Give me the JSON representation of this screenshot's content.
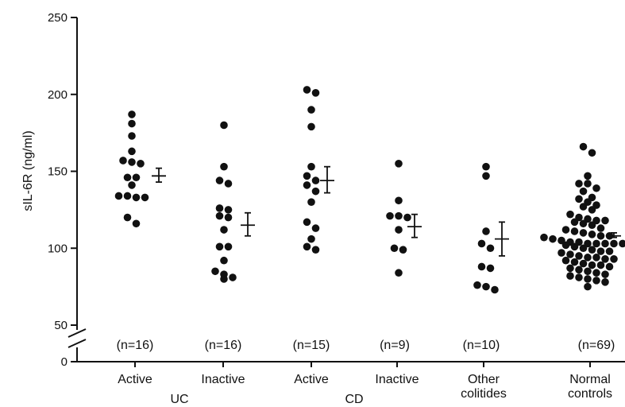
{
  "chart_data": {
    "type": "scatter",
    "ylabel": "sIL-6R (ng/ml)",
    "ylim": [
      50,
      250
    ],
    "y_ticks": [
      "250",
      "200",
      "150",
      "100",
      "50",
      "0"
    ],
    "axis_break": true,
    "groups": [
      {
        "label": "Active",
        "n_label": "(n=16)",
        "values": [
          187,
          181,
          173,
          163,
          157,
          156,
          155,
          146,
          146,
          141,
          134,
          134,
          133,
          133,
          120,
          116
        ],
        "mean": 147,
        "sem_low": 143,
        "sem_high": 152
      },
      {
        "label": "Inactive",
        "n_label": "(n=16)",
        "values": [
          180,
          153,
          144,
          142,
          126,
          125,
          121,
          120,
          112,
          101,
          101,
          92,
          85,
          83,
          81,
          80
        ],
        "mean": 115,
        "sem_low": 108,
        "sem_high": 123
      },
      {
        "label": "Active",
        "n_label": "(n=15)",
        "values": [
          203,
          201,
          190,
          179,
          153,
          147,
          144,
          141,
          137,
          130,
          117,
          113,
          106,
          101,
          99
        ],
        "mean": 144,
        "sem_low": 136,
        "sem_high": 153
      },
      {
        "label": "Inactive",
        "n_label": "(n=9)",
        "values": [
          155,
          131,
          121,
          120,
          112,
          100,
          99,
          84,
          121
        ],
        "mean": 114,
        "sem_low": 107,
        "sem_high": 122
      },
      {
        "label": "Other colitides",
        "n_label": "(n=10)",
        "values": [
          153,
          147,
          111,
          103,
          100,
          88,
          87,
          76,
          75,
          73
        ],
        "mean": 106,
        "sem_low": 95,
        "sem_high": 117
      },
      {
        "label": "Normal controls",
        "n_label": "(n=69)",
        "values": [
          166,
          162,
          147,
          142,
          142,
          139,
          137,
          133,
          132,
          130,
          128,
          127,
          125,
          122,
          120,
          119,
          118,
          118,
          117,
          116,
          115,
          113,
          112,
          111,
          110,
          109,
          108,
          108,
          107,
          106,
          105,
          104,
          104,
          103,
          103,
          103,
          103,
          103,
          103,
          102,
          101,
          100,
          99,
          98,
          98,
          97,
          96,
          95,
          94,
          94,
          93,
          93,
          92,
          91,
          90,
          89,
          89,
          88,
          87,
          86,
          85,
          84,
          83,
          82,
          81,
          80,
          79,
          78,
          75
        ],
        "mean": 108,
        "sem_low": 107,
        "sem_high": 110
      }
    ],
    "super_labels": [
      "UC",
      "CD"
    ]
  }
}
